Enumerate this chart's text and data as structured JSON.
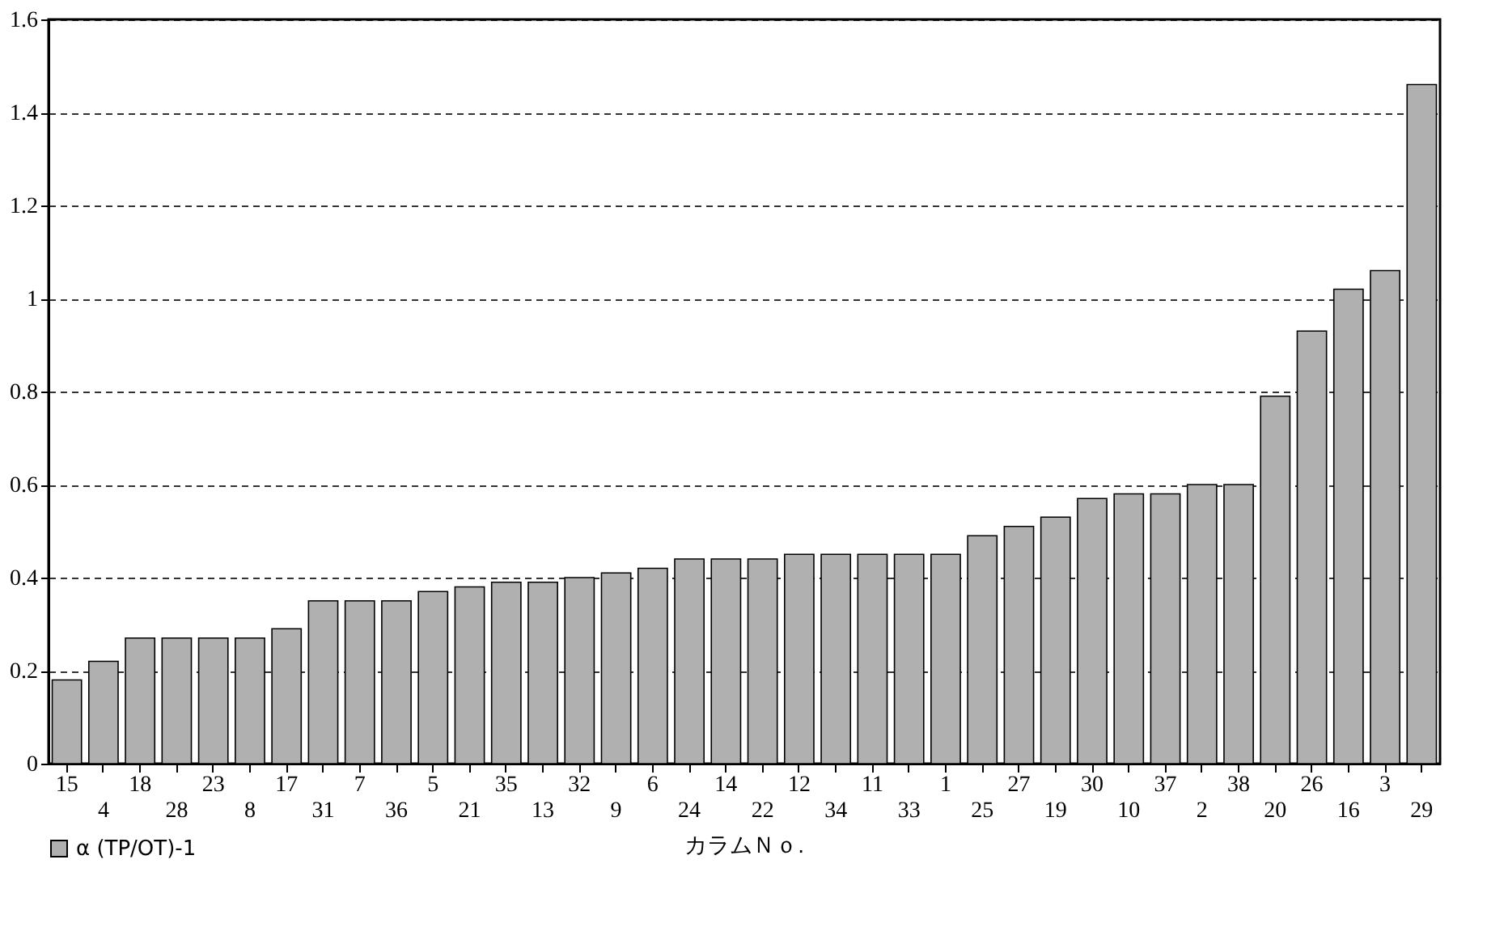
{
  "chart_data": {
    "type": "bar",
    "xlabel": "カラムＮｏ.",
    "categories": [
      "15",
      "4",
      "18",
      "28",
      "23",
      "8",
      "17",
      "31",
      "7",
      "36",
      "5",
      "21",
      "35",
      "13",
      "32",
      "9",
      "6",
      "24",
      "14",
      "22",
      "12",
      "34",
      "11",
      "33",
      "1",
      "25",
      "27",
      "19",
      "30",
      "10",
      "37",
      "2",
      "38",
      "20",
      "26",
      "16",
      "3",
      "29"
    ],
    "series": [
      {
        "name": "α (TP/OT)-1",
        "color": "#b0b0b0",
        "values": [
          0.18,
          0.22,
          0.27,
          0.27,
          0.27,
          0.27,
          0.29,
          0.35,
          0.35,
          0.35,
          0.37,
          0.38,
          0.39,
          0.39,
          0.4,
          0.41,
          0.42,
          0.44,
          0.44,
          0.44,
          0.45,
          0.45,
          0.45,
          0.45,
          0.45,
          0.49,
          0.51,
          0.53,
          0.57,
          0.58,
          0.58,
          0.6,
          0.6,
          0.79,
          0.93,
          1.02,
          1.06,
          1.46
        ]
      }
    ],
    "ylim": [
      0,
      1.6
    ],
    "yticks": [
      0,
      0.2,
      0.4,
      0.6,
      0.8,
      1,
      1.2,
      1.4,
      1.6
    ],
    "grid": "y",
    "legend": "bottom"
  }
}
